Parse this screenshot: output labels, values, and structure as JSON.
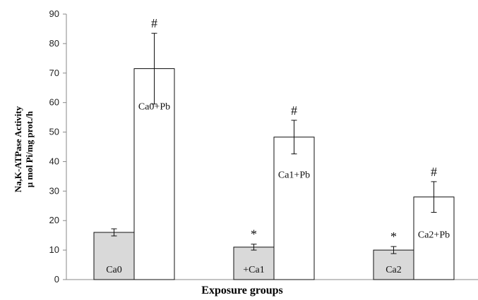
{
  "chart_data": {
    "type": "bar",
    "title": "",
    "xlabel": "Exposure groups",
    "ylabel_lines": [
      "Na,K-ATPase Activity",
      "µ mol Pi/mg prot./h"
    ],
    "ylim": [
      0,
      90
    ],
    "yticks": [
      0,
      10,
      20,
      30,
      40,
      50,
      60,
      70,
      80,
      90
    ],
    "groups": [
      {
        "bars": [
          {
            "label": "Ca0",
            "value": 16,
            "error": 1.2,
            "fill": "#d9d9d9",
            "marker": ""
          },
          {
            "label": "Ca0+Pb",
            "value": 71.5,
            "error": 12,
            "fill": "#ffffff",
            "marker": "#"
          }
        ]
      },
      {
        "bars": [
          {
            "label": "+Ca1",
            "value": 11,
            "error": 1,
            "fill": "#d9d9d9",
            "marker": "*"
          },
          {
            "label": "Ca1+Pb",
            "value": 48.3,
            "error": 5.7,
            "fill": "#ffffff",
            "marker": "#"
          }
        ]
      },
      {
        "bars": [
          {
            "label": "Ca2",
            "value": 10,
            "error": 1.2,
            "fill": "#d9d9d9",
            "marker": "*"
          },
          {
            "label": "Ca2+Pb",
            "value": 28,
            "error": 5.2,
            "fill": "#ffffff",
            "marker": "#"
          }
        ]
      }
    ],
    "grid": false,
    "legend": "none"
  }
}
